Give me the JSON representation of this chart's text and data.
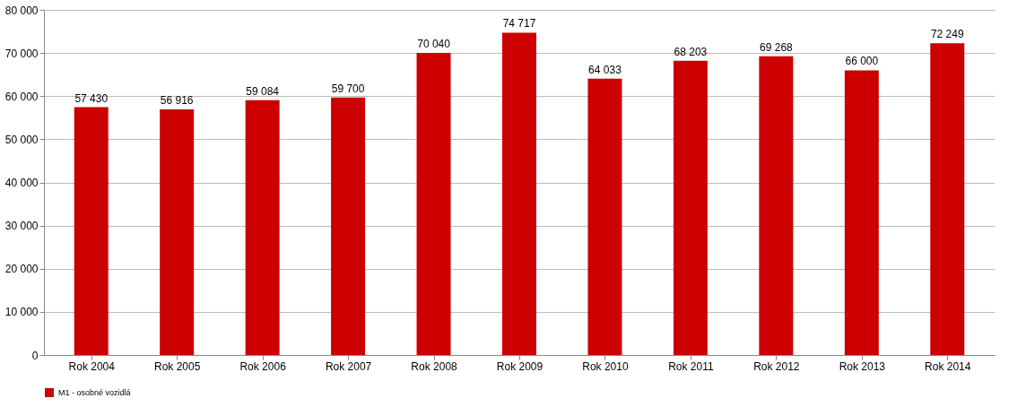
{
  "chart_data": {
    "type": "bar",
    "categories": [
      "Rok 2004",
      "Rok 2005",
      "Rok 2006",
      "Rok 2007",
      "Rok 2008",
      "Rok 2009",
      "Rok 2010",
      "Rok 2011",
      "Rok 2012",
      "Rok 2013",
      "Rok 2014"
    ],
    "series": [
      {
        "name": "M1 - osobné vozidlá",
        "color": "#cc0000",
        "values": [
          57430,
          56916,
          59084,
          59700,
          70040,
          74717,
          64033,
          68203,
          69268,
          66000,
          72249
        ],
        "value_labels": [
          "57 430",
          "56 916",
          "59 084",
          "59 700",
          "70 040",
          "74 717",
          "64 033",
          "68 203",
          "69 268",
          "66 000",
          "72 249"
        ]
      }
    ],
    "ylim": [
      0,
      80000
    ],
    "yticks": [
      {
        "value": 0,
        "label": "0"
      },
      {
        "value": 10000,
        "label": "10 000"
      },
      {
        "value": 20000,
        "label": "20 000"
      },
      {
        "value": 30000,
        "label": "30 000"
      },
      {
        "value": 40000,
        "label": "40 000"
      },
      {
        "value": 50000,
        "label": "50 000"
      },
      {
        "value": 60000,
        "label": "60 000"
      },
      {
        "value": 70000,
        "label": "70 000"
      },
      {
        "value": 80000,
        "label": "80 000"
      }
    ],
    "grid": "y",
    "legend": "bottom"
  }
}
